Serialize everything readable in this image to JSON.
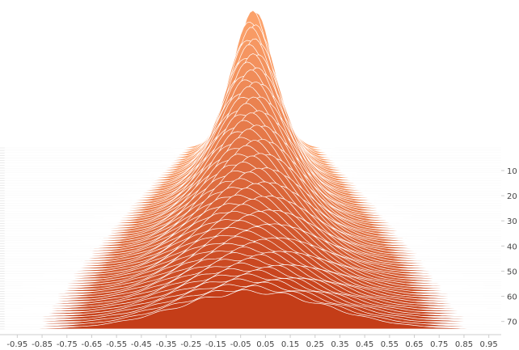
{
  "chart_data": {
    "type": "area",
    "subtype": "ridgeline",
    "title": "",
    "xlabel": "",
    "ylabel": "",
    "x_ticks": [
      "-0.95",
      "-0.85",
      "-0.75",
      "-0.65",
      "-0.55",
      "-0.45",
      "-0.35",
      "-0.25",
      "-0.15",
      "-0.05",
      "0.05",
      "0.15",
      "0.25",
      "0.35",
      "0.45",
      "0.55",
      "0.65",
      "0.75",
      "0.85",
      "0.95"
    ],
    "x_range": [
      -1.0,
      1.0
    ],
    "y_ticks": [
      "10",
      "20",
      "30",
      "40",
      "50",
      "60",
      "70"
    ],
    "y_range": [
      0,
      73
    ],
    "ridge_count": 73,
    "colors": {
      "light": "#fca26b",
      "dark": "#c43d18",
      "grid": "#dddddd",
      "stroke": "#ffffff",
      "axis": "#cccccc"
    },
    "series": [
      {
        "sd": 0.082,
        "amp": 1.0
      },
      {
        "sd": 0.085,
        "amp": 0.99
      },
      {
        "sd": 0.088,
        "amp": 0.98
      },
      {
        "sd": 0.091,
        "amp": 0.97
      },
      {
        "sd": 0.094,
        "amp": 0.96
      },
      {
        "sd": 0.097,
        "amp": 0.95
      },
      {
        "sd": 0.1,
        "amp": 0.94
      },
      {
        "sd": 0.103,
        "amp": 0.93
      },
      {
        "sd": 0.106,
        "amp": 0.92
      },
      {
        "sd": 0.109,
        "amp": 0.91
      },
      {
        "sd": 0.112,
        "amp": 0.9
      },
      {
        "sd": 0.115,
        "amp": 0.89
      },
      {
        "sd": 0.118,
        "amp": 0.88
      },
      {
        "sd": 0.121,
        "amp": 0.87
      },
      {
        "sd": 0.124,
        "amp": 0.86
      },
      {
        "sd": 0.127,
        "amp": 0.85
      },
      {
        "sd": 0.13,
        "amp": 0.84
      },
      {
        "sd": 0.133,
        "amp": 0.83
      },
      {
        "sd": 0.136,
        "amp": 0.82
      },
      {
        "sd": 0.139,
        "amp": 0.81
      },
      {
        "sd": 0.142,
        "amp": 0.8
      },
      {
        "sd": 0.145,
        "amp": 0.79
      },
      {
        "sd": 0.148,
        "amp": 0.78
      },
      {
        "sd": 0.151,
        "amp": 0.77
      },
      {
        "sd": 0.154,
        "amp": 0.76
      },
      {
        "sd": 0.157,
        "amp": 0.75
      },
      {
        "sd": 0.16,
        "amp": 0.74
      },
      {
        "sd": 0.163,
        "amp": 0.73
      },
      {
        "sd": 0.166,
        "amp": 0.72
      },
      {
        "sd": 0.169,
        "amp": 0.71
      },
      {
        "sd": 0.172,
        "amp": 0.7
      },
      {
        "sd": 0.175,
        "amp": 0.69
      },
      {
        "sd": 0.178,
        "amp": 0.68
      },
      {
        "sd": 0.181,
        "amp": 0.67
      },
      {
        "sd": 0.184,
        "amp": 0.66
      },
      {
        "sd": 0.187,
        "amp": 0.65
      },
      {
        "sd": 0.19,
        "amp": 0.64
      },
      {
        "sd": 0.193,
        "amp": 0.63
      },
      {
        "sd": 0.196,
        "amp": 0.62
      },
      {
        "sd": 0.199,
        "amp": 0.61
      },
      {
        "sd": 0.202,
        "amp": 0.6
      },
      {
        "sd": 0.205,
        "amp": 0.59
      },
      {
        "sd": 0.208,
        "amp": 0.58
      },
      {
        "sd": 0.211,
        "amp": 0.57
      },
      {
        "sd": 0.214,
        "amp": 0.56
      },
      {
        "sd": 0.217,
        "amp": 0.55
      },
      {
        "sd": 0.22,
        "amp": 0.54
      },
      {
        "sd": 0.223,
        "amp": 0.53
      },
      {
        "sd": 0.226,
        "amp": 0.52
      },
      {
        "sd": 0.229,
        "amp": 0.51
      },
      {
        "sd": 0.232,
        "amp": 0.5
      },
      {
        "sd": 0.235,
        "amp": 0.49
      },
      {
        "sd": 0.238,
        "amp": 0.48
      },
      {
        "sd": 0.241,
        "amp": 0.47
      },
      {
        "sd": 0.244,
        "amp": 0.46
      },
      {
        "sd": 0.247,
        "amp": 0.45
      },
      {
        "sd": 0.25,
        "amp": 0.44
      },
      {
        "sd": 0.253,
        "amp": 0.43
      },
      {
        "sd": 0.256,
        "amp": 0.42
      },
      {
        "sd": 0.259,
        "amp": 0.41
      },
      {
        "sd": 0.262,
        "amp": 0.4
      },
      {
        "sd": 0.265,
        "amp": 0.39
      },
      {
        "sd": 0.268,
        "amp": 0.38
      },
      {
        "sd": 0.271,
        "amp": 0.37
      },
      {
        "sd": 0.274,
        "amp": 0.36
      },
      {
        "sd": 0.277,
        "amp": 0.35
      },
      {
        "sd": 0.28,
        "amp": 0.34
      },
      {
        "sd": 0.283,
        "amp": 0.33
      },
      {
        "sd": 0.286,
        "amp": 0.32
      },
      {
        "sd": 0.289,
        "amp": 0.31
      },
      {
        "sd": 0.292,
        "amp": 0.3
      },
      {
        "sd": 0.295,
        "amp": 0.29
      },
      {
        "sd": 0.298,
        "amp": 0.28
      }
    ]
  }
}
